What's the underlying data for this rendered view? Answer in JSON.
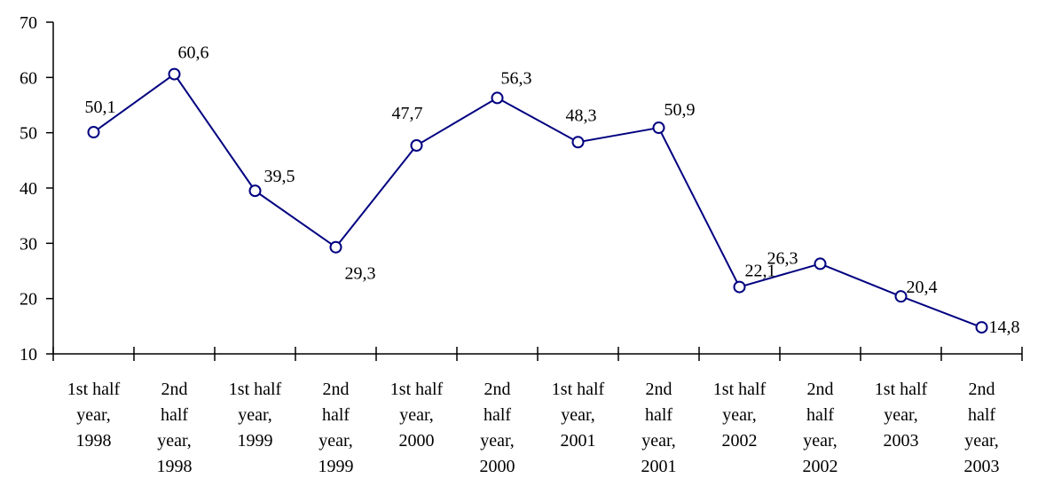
{
  "chart_data": {
    "type": "line",
    "categories": [
      "1st half year, 1998",
      "2nd half year, 1998",
      "1st half year, 1999",
      "2nd half year, 1999",
      "1st half year, 2000",
      "2nd half year, 2000",
      "1st half year, 2001",
      "2nd half year, 2001",
      "1st half year, 2002",
      "2nd half year, 2002",
      "1st half year, 2003",
      "2nd half year, 2003"
    ],
    "series": [
      {
        "color": "#000080",
        "values": [
          50.1,
          60.6,
          39.5,
          29.3,
          47.7,
          56.3,
          48.3,
          50.9,
          22.1,
          26.3,
          20.4,
          14.8
        ],
        "value_labels": [
          "50,1",
          "60,6",
          "39,5",
          "29,3",
          "47,7",
          "56,3",
          "48,3",
          "50,9",
          "22,1",
          "26,3",
          "20,4",
          "14,8"
        ]
      }
    ],
    "ylim": [
      10,
      70
    ],
    "yticks": [
      10,
      20,
      30,
      40,
      50,
      60,
      70
    ],
    "grid": false
  }
}
